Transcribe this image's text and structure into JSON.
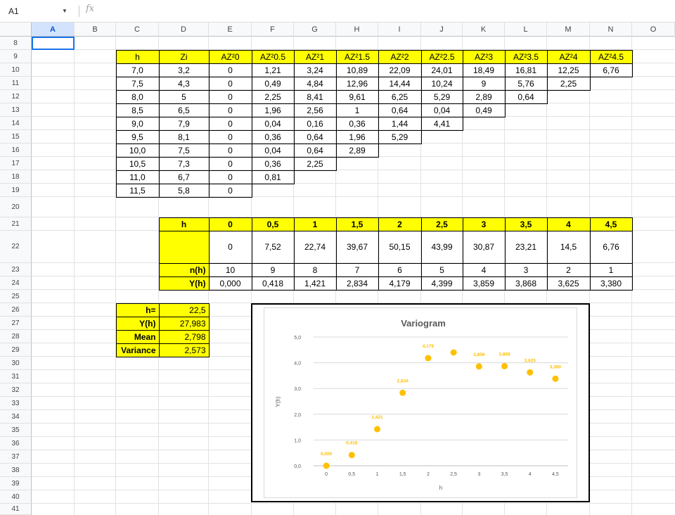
{
  "formula_bar": {
    "name_box": "A1",
    "fx": "fx",
    "value": ""
  },
  "columns": [
    "A",
    "B",
    "C",
    "D",
    "E",
    "F",
    "G",
    "H",
    "I",
    "J",
    "K",
    "L",
    "M",
    "N",
    "O"
  ],
  "selected_column": "A",
  "rows": [
    "8",
    "9",
    "10",
    "11",
    "12",
    "13",
    "14",
    "15",
    "16",
    "17",
    "18",
    "19",
    "20",
    "21",
    "22",
    "23",
    "24",
    "25",
    "26",
    "27",
    "28",
    "29",
    "30",
    "31",
    "32",
    "33",
    "34",
    "35",
    "36",
    "37",
    "38",
    "39",
    "40",
    "41"
  ],
  "table1": {
    "headers": [
      "h",
      "Zi",
      "AZ²0",
      "AZ²0.5",
      "AZ²1",
      "AZ²1.5",
      "AZ²2",
      "AZ²2.5",
      "AZ²3",
      "AZ²3.5",
      "AZ²4",
      "AZ²4.5"
    ],
    "rows": [
      [
        "7,0",
        "3,2",
        "0",
        "1,21",
        "3,24",
        "10,89",
        "22,09",
        "24,01",
        "18,49",
        "16,81",
        "12,25",
        "6,76"
      ],
      [
        "7,5",
        "4,3",
        "0",
        "0,49",
        "4,84",
        "12,96",
        "14,44",
        "10,24",
        "9",
        "5,76",
        "2,25"
      ],
      [
        "8,0",
        "5",
        "0",
        "2,25",
        "8,41",
        "9,61",
        "6,25",
        "5,29",
        "2,89",
        "0,64"
      ],
      [
        "8,5",
        "6,5",
        "0",
        "1,96",
        "2,56",
        "1",
        "0,64",
        "0,04",
        "0,49"
      ],
      [
        "9,0",
        "7,9",
        "0",
        "0,04",
        "0,16",
        "0,36",
        "1,44",
        "4,41"
      ],
      [
        "9,5",
        "8,1",
        "0",
        "0,36",
        "0,64",
        "1,96",
        "5,29"
      ],
      [
        "10,0",
        "7,5",
        "0",
        "0,04",
        "0,64",
        "2,89"
      ],
      [
        "10,5",
        "7,3",
        "0",
        "0,36",
        "2,25"
      ],
      [
        "11,0",
        "6,7",
        "0",
        "0,81"
      ],
      [
        "11,5",
        "5,8",
        "0"
      ]
    ]
  },
  "table2": {
    "h_label": "h",
    "h_values": [
      "0",
      "0,5",
      "1",
      "1,5",
      "2",
      "2,5",
      "3",
      "3,5",
      "4",
      "4,5"
    ],
    "sums": [
      "0",
      "7,52",
      "22,74",
      "39,67",
      "50,15",
      "43,99",
      "30,87",
      "23,21",
      "14,5",
      "6,76"
    ],
    "n_label": "n(h)",
    "n_values": [
      "10",
      "9",
      "8",
      "7",
      "6",
      "5",
      "4",
      "3",
      "2",
      "1"
    ],
    "y_label": "Y(h)",
    "y_values": [
      "0,000",
      "0,418",
      "1,421",
      "2,834",
      "4,179",
      "4,399",
      "3,859",
      "3,868",
      "3,625",
      "3,380"
    ]
  },
  "summary": [
    {
      "label": "h=",
      "value": "22,5"
    },
    {
      "label": "Y(h)",
      "value": "27,983"
    },
    {
      "label": "Mean",
      "value": "2,798"
    },
    {
      "label": "Variance",
      "value": "2,573"
    }
  ],
  "chart_data": {
    "type": "scatter",
    "title": "Variogram",
    "xlabel": "h",
    "ylabel": "Y(h)",
    "categories": [
      "0",
      "0,5",
      "1",
      "1,5",
      "2",
      "2,5",
      "3",
      "3,5",
      "4",
      "4,5"
    ],
    "values": [
      0.0,
      0.418,
      1.421,
      2.834,
      4.179,
      4.399,
      3.859,
      3.868,
      3.625,
      3.38
    ],
    "data_labels": [
      "0,000",
      "0,418",
      "1,421",
      "2,834",
      "4,179",
      "",
      "3,859",
      "3,868",
      "3,625",
      "3,380"
    ],
    "y_ticks": [
      "0,0",
      "1,0",
      "2,0",
      "3,0",
      "4,0",
      "5,0"
    ],
    "ylim": [
      0,
      5
    ],
    "grid": true,
    "marker_color": "#ffc000"
  }
}
